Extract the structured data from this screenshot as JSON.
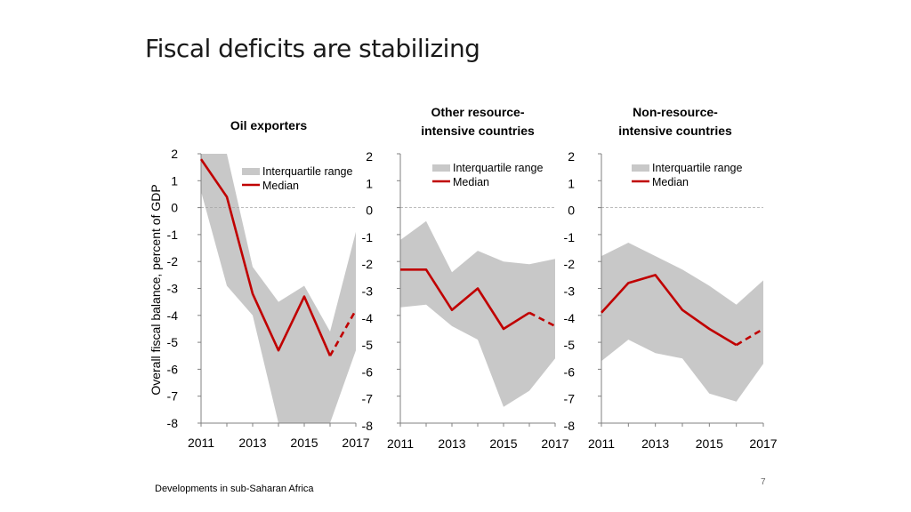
{
  "slide": {
    "title": "Fiscal deficits are stabilizing",
    "footer": "Developments in sub-Saharan Africa",
    "page_number": "7"
  },
  "colors": {
    "band": "#c8c8c8",
    "median": "#c00000",
    "axis": "#808080",
    "zero_line": "#a6a6a6"
  },
  "chart_data": [
    {
      "type": "area",
      "title_lines": [
        "Oil exporters"
      ],
      "ylabel": "Overall fiscal balance, percent of GDP",
      "ylim": [
        -8,
        2
      ],
      "yticks": [
        "2",
        "1",
        "0",
        "-1",
        "-2",
        "-3",
        "-4",
        "-5",
        "-6",
        "-7",
        "-8"
      ],
      "xticks": [
        "2011",
        "2013",
        "2015",
        "2017"
      ],
      "x": [
        2011,
        2012,
        2013,
        2014,
        2015,
        2016,
        2017
      ],
      "legend": [
        "Interquartile range",
        "Median"
      ],
      "series": [
        {
          "name": "Interquartile range upper",
          "values": [
            2.0,
            2.0,
            -2.2,
            -3.5,
            -2.9,
            -4.6,
            -0.9
          ]
        },
        {
          "name": "Interquartile range lower",
          "values": [
            0.6,
            -2.9,
            -4.0,
            -8.0,
            -8.0,
            -8.0,
            -5.3
          ]
        },
        {
          "name": "Median",
          "values": [
            1.8,
            0.4,
            -3.2,
            -5.3,
            -3.3,
            -5.5,
            -3.8
          ],
          "projection_from": 2016
        }
      ]
    },
    {
      "type": "area",
      "title_lines": [
        "Other resource-",
        "intensive countries"
      ],
      "ylim": [
        -8,
        2
      ],
      "yticks": [
        "2",
        "1",
        "0",
        "-1",
        "-2",
        "-3",
        "-4",
        "-5",
        "-6",
        "-7",
        "-8"
      ],
      "xticks": [
        "2011",
        "2013",
        "2015",
        "2017"
      ],
      "x": [
        2011,
        2012,
        2013,
        2014,
        2015,
        2016,
        2017
      ],
      "legend": [
        "Interquartile range",
        "Median"
      ],
      "series": [
        {
          "name": "Interquartile range upper",
          "values": [
            -1.2,
            -0.5,
            -2.4,
            -1.6,
            -2.0,
            -2.1,
            -1.9
          ]
        },
        {
          "name": "Interquartile range lower",
          "values": [
            -3.7,
            -3.6,
            -4.4,
            -4.9,
            -7.4,
            -6.8,
            -5.6
          ]
        },
        {
          "name": "Median",
          "values": [
            -2.3,
            -2.3,
            -3.8,
            -3.0,
            -4.5,
            -3.9,
            -4.4
          ],
          "projection_from": 2016
        }
      ]
    },
    {
      "type": "area",
      "title_lines": [
        "Non-resource-",
        "intensive countries"
      ],
      "ylim": [
        -8,
        2
      ],
      "yticks": [
        "2",
        "1",
        "0",
        "-1",
        "-2",
        "-3",
        "-4",
        "-5",
        "-6",
        "-7",
        "-8"
      ],
      "xticks": [
        "2011",
        "2013",
        "2015",
        "2017"
      ],
      "x": [
        2011,
        2012,
        2013,
        2014,
        2015,
        2016,
        2017
      ],
      "legend": [
        "Interquartile range",
        "Median"
      ],
      "series": [
        {
          "name": "Interquartile range upper",
          "values": [
            -1.8,
            -1.3,
            -1.8,
            -2.3,
            -2.9,
            -3.6,
            -2.7
          ]
        },
        {
          "name": "Interquartile range lower",
          "values": [
            -5.7,
            -4.9,
            -5.4,
            -5.6,
            -6.9,
            -7.2,
            -5.8
          ]
        },
        {
          "name": "Median",
          "values": [
            -3.9,
            -2.8,
            -2.5,
            -3.8,
            -4.5,
            -5.1,
            -4.5
          ],
          "projection_from": 2016
        }
      ]
    }
  ]
}
